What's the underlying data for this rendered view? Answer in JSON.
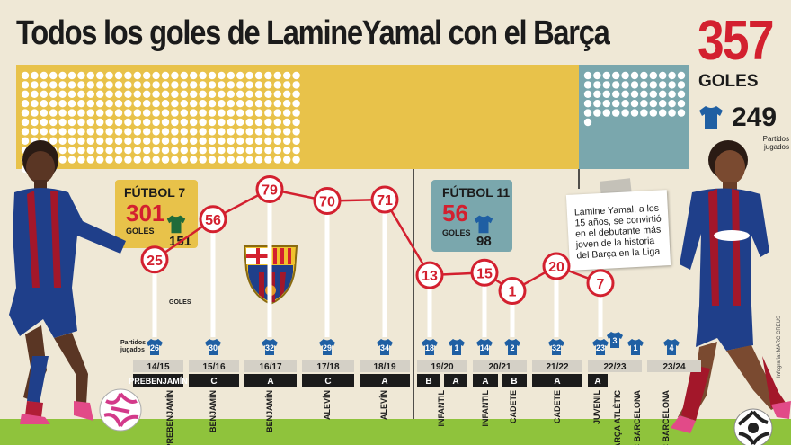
{
  "title": "Todos los goles de LamineYamal con el Barça",
  "totals": {
    "goals": "357",
    "goals_label": "GOLES",
    "matches": "249",
    "matches_label": "Partidos jugados",
    "shirt_icon": "jersey-icon"
  },
  "futbol7": {
    "title": "FÚTBOL 7",
    "goals": "301",
    "goals_label": "GOLES",
    "matches": "151"
  },
  "futbol11": {
    "title": "FÚTBOL 11",
    "goals": "56",
    "goals_label": "GOLES",
    "matches": "98"
  },
  "note": "Lamine Yamal, a los 15 años, se convirtió en el debutante más joven de la historia del Barça en la Liga",
  "credit": "Infografía: MARC CREUS",
  "colors": {
    "red": "#d3202f",
    "yellow": "#e8c24a",
    "teal": "#7aa7ad",
    "grass": "#8fc33c"
  },
  "chart_data": {
    "type": "line",
    "goals_axis_label": "GOLES",
    "matches_axis_label": "Partidos jugados",
    "seasons": [
      "14/15",
      "15/16",
      "16/17",
      "17/18",
      "18/19",
      "19/20",
      "20/21",
      "21/22",
      "22/23",
      "23/24"
    ],
    "series": [
      {
        "category": "PREBENJAMÍN",
        "team": "PREBENJAMÍN",
        "season": "14/15",
        "goals": 25,
        "matches": 26
      },
      {
        "category": "BENJAMÍN",
        "team": "C",
        "season": "15/16",
        "goals": 56,
        "matches": 30
      },
      {
        "category": "BENJAMÍN",
        "team": "A",
        "season": "16/17",
        "goals": 79,
        "matches": 32
      },
      {
        "category": "ALEVÍN",
        "team": "C",
        "season": "17/18",
        "goals": 70,
        "matches": 29
      },
      {
        "category": "ALEVÍN",
        "team": "A",
        "season": "18/19",
        "goals": 71,
        "matches": 34
      },
      {
        "category": "INFANTIL",
        "team": "B",
        "season": "19/20",
        "goals": 13,
        "matches": 18
      },
      {
        "category": "",
        "team": "A",
        "season": "19/20",
        "goals": null,
        "matches": 1
      },
      {
        "category": "INFANTIL",
        "team": "A",
        "season": "20/21",
        "goals": 15,
        "matches": 14
      },
      {
        "category": "CADETE",
        "team": "B",
        "season": "20/21",
        "goals": 1,
        "matches": 2
      },
      {
        "category": "CADETE",
        "team": "A",
        "season": "21/22",
        "goals": 20,
        "matches": 32
      },
      {
        "category": "JUVENIL",
        "team": "A",
        "season": "22/23",
        "goals": 7,
        "matches": 23
      },
      {
        "category": "BARÇA ATLÈTIC",
        "team": "",
        "season": "22/23",
        "goals": null,
        "matches": 3
      },
      {
        "category": "FC BARCELONA",
        "team": "",
        "season": "22/23",
        "goals": null,
        "matches": 1
      },
      {
        "category": "FC BARCELONA",
        "team": "",
        "season": "23/24",
        "goals": null,
        "matches": 4
      }
    ]
  }
}
